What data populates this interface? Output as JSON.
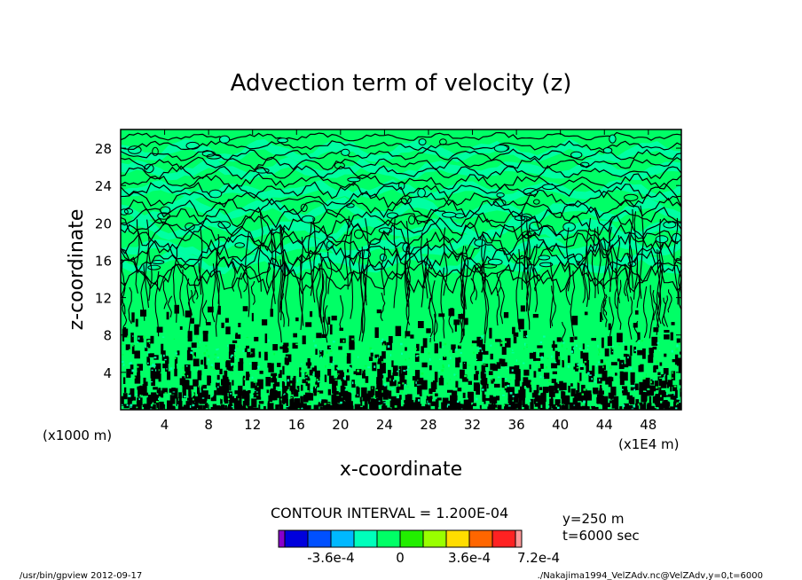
{
  "title": "Advection term of velocity (z)",
  "xlabel": "x-coordinate",
  "ylabel": "z-coordinate",
  "y_unit_label": "(x1000 m)",
  "x_unit_label": "(x1E4 m)",
  "contour_interval_text": "CONTOUR INTERVAL = 1.200E-04",
  "info_y": "y=250  m",
  "info_t": "t=6000 sec",
  "footer_left": "/usr/bin/gpview   2012-09-17",
  "footer_right": "./Nakajima1994_VelZAdv.nc@VelZAdv,y=0,t=6000",
  "colors": {
    "background": "#00ff66",
    "green_dominant": "#00ff44",
    "cyan_green": "#00ffaa",
    "contour_line": "#000000"
  },
  "chart_data": {
    "type": "heatmap",
    "title": "Advection term of velocity (z)",
    "xlabel": "x-coordinate",
    "ylabel": "z-coordinate",
    "xlim": [
      0,
      51
    ],
    "ylim": [
      0,
      30
    ],
    "x_ticks": [
      "4",
      "8",
      "12",
      "16",
      "20",
      "24",
      "28",
      "32",
      "36",
      "40",
      "44",
      "48"
    ],
    "x_tick_values": [
      4,
      8,
      12,
      16,
      20,
      24,
      28,
      32,
      36,
      40,
      44,
      48
    ],
    "y_ticks": [
      "4",
      "8",
      "12",
      "16",
      "20",
      "24",
      "28"
    ],
    "y_tick_values": [
      4,
      8,
      12,
      16,
      20,
      24,
      28
    ],
    "contour_interval": 0.00012,
    "colorbar": {
      "colors": [
        "#8800cc",
        "#0000dd",
        "#0050ff",
        "#00b8ff",
        "#00ffbb",
        "#00ff66",
        "#22ee00",
        "#99ff00",
        "#ffdd00",
        "#ff6600",
        "#ff2222",
        "#ff9999"
      ],
      "tick_labels": [
        "-3.6e-4",
        "0",
        "3.6e-4",
        "7.2e-4"
      ],
      "tick_values": [
        -0.00036,
        0,
        0.00036,
        0.00072
      ]
    }
  }
}
